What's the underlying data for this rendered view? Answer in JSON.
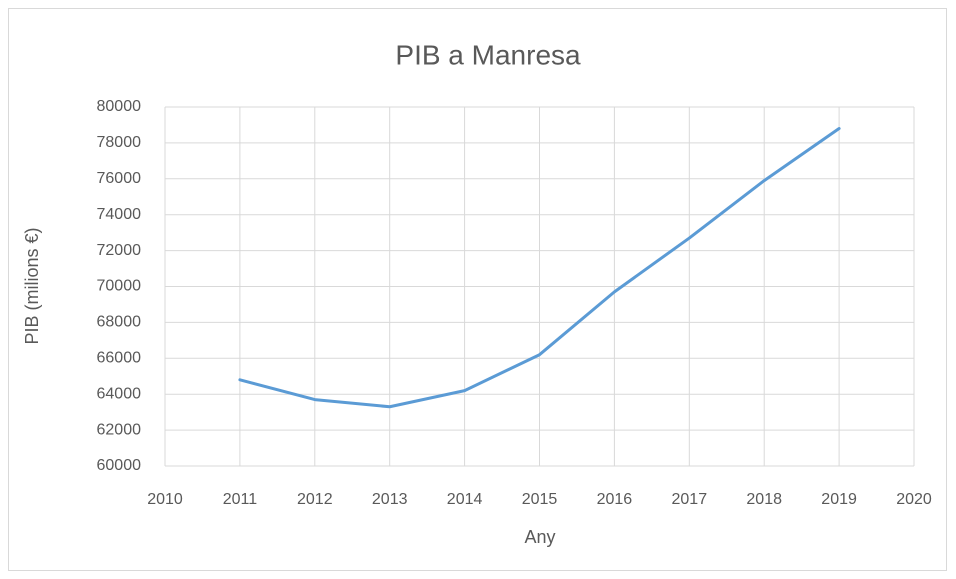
{
  "chart_data": {
    "type": "line",
    "title": "PIB a Manresa",
    "x_label": "Any",
    "y_label": "PIB (milions €)",
    "x": [
      2011,
      2012,
      2013,
      2014,
      2015,
      2016,
      2017,
      2018,
      2019
    ],
    "series": [
      {
        "name": "PIB",
        "color": "#5b9bd5",
        "values": [
          64800,
          63700,
          63300,
          64200,
          66200,
          69700,
          72700,
          75900,
          78800
        ]
      }
    ],
    "xlim": [
      2010,
      2020
    ],
    "xticks": [
      2010,
      2011,
      2012,
      2013,
      2014,
      2015,
      2016,
      2017,
      2018,
      2019,
      2020
    ],
    "ylim": [
      60000,
      80000
    ],
    "yticks": [
      60000,
      62000,
      64000,
      66000,
      68000,
      70000,
      72000,
      74000,
      76000,
      78000,
      80000
    ],
    "grid": true
  }
}
